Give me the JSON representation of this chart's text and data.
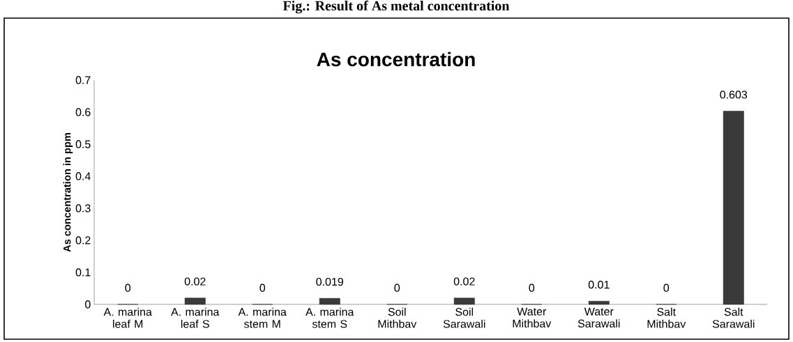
{
  "chart_data": {
    "type": "bar",
    "title": "As concentration",
    "ylabel": "As concentration in ppm",
    "annotations": [
      "Fig.: Result of As metal concentration"
    ],
    "categories": [
      "A. marina leaf M",
      "A. marina leaf S",
      "A. marina stem M",
      "A. marina stem S",
      "Soil Mithbav",
      "Soil Sarawali",
      "Water Mithbav",
      "Water Sarawali",
      "Salt Mithbav",
      "Salt Sarawali"
    ],
    "values": [
      0,
      0.02,
      0,
      0.019,
      0,
      0.02,
      0,
      0.01,
      0,
      0.603
    ],
    "color": "#3a3a3a",
    "ylim": [
      0,
      0.7
    ],
    "yticks": [
      0,
      0.1,
      0.2,
      0.3,
      0.4,
      0.5,
      0.6,
      0.7
    ],
    "data_labels": true
  }
}
